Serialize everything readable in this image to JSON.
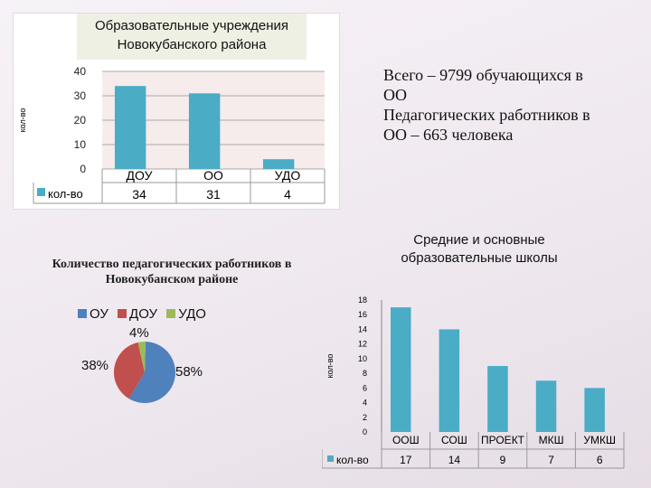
{
  "chart_data": [
    {
      "type": "bar",
      "title": "Образовательные учреждения Новокубанского района",
      "ylabel": "кол-во",
      "categories": [
        "ДОУ",
        "ОО",
        "УДО"
      ],
      "series": [
        {
          "name": "кол-во",
          "values": [
            34,
            31,
            4
          ]
        }
      ],
      "ylim": [
        0,
        40
      ],
      "yticks": [
        "0",
        "10",
        "20",
        "30",
        "40"
      ],
      "table_values": [
        "34",
        "31",
        "4"
      ],
      "color": "#4bacc6",
      "grid": true,
      "legend": "bottom-left"
    },
    {
      "type": "pie",
      "title": "Количество педагогических работников в Новокубанском районе",
      "categories": [
        "ОУ",
        "ДОУ",
        "УДО"
      ],
      "values": [
        58,
        38,
        4
      ],
      "labels": [
        "58%",
        "38%",
        "4%"
      ],
      "colors": [
        "#4f81bd",
        "#c0504d",
        "#9bbb59"
      ],
      "legend": "top"
    },
    {
      "type": "bar",
      "title": "Средние и основные образовательные школы",
      "ylabel": "кол-во",
      "categories": [
        "ООШ",
        "СОШ",
        "ПРОЕКТ",
        "МКШ",
        "УМКШ"
      ],
      "series": [
        {
          "name": "кол-во",
          "values": [
            17,
            14,
            9,
            7,
            6
          ]
        }
      ],
      "ylim": [
        0,
        18
      ],
      "yticks": [
        "0",
        "2",
        "4",
        "6",
        "8",
        "10",
        "12",
        "14",
        "16",
        "18"
      ],
      "table_values": [
        "17",
        "14",
        "9",
        "7",
        "6"
      ],
      "color": "#4bacc6",
      "grid": false,
      "legend": "bottom-left"
    }
  ],
  "note": {
    "lines": [
      "Всего – 9799  обучающихся в",
      "ОО",
      "Педагогических работников в",
      "ОО – 663 человека"
    ]
  }
}
